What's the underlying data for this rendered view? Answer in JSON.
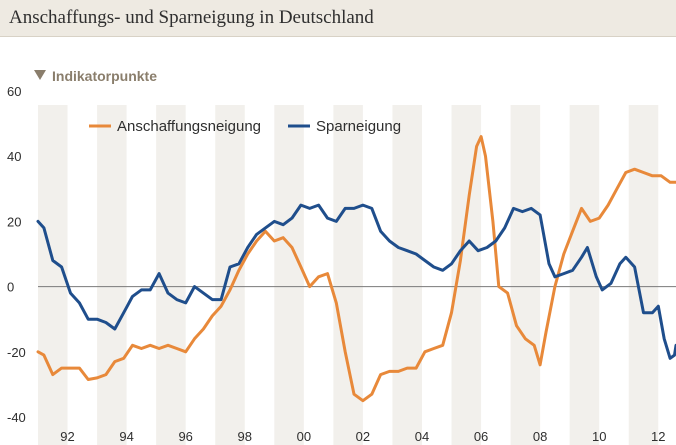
{
  "title": "Anschaffungs- und Sparneigung  in Deutschland",
  "chart_data": {
    "type": "line",
    "ylabel": "Indikatorpunkte",
    "ylim": [
      -40,
      60
    ],
    "xlim": [
      1991.0,
      2012.6
    ],
    "yticks": [
      "60",
      "40",
      "20",
      "0",
      "-20",
      "-40"
    ],
    "xticks": [
      "92",
      "94",
      "96",
      "98",
      "00",
      "02",
      "04",
      "06",
      "08",
      "10",
      "12"
    ],
    "grid": "alternating vertical bands",
    "legend_position": "top-left",
    "colors": {
      "Anschaffungsneigung": "#e8893a",
      "Sparneigung": "#1f4e8c"
    },
    "series": [
      {
        "name": "Anschaffungsneigung",
        "points": [
          [
            1991.0,
            -20
          ],
          [
            1991.2,
            -21
          ],
          [
            1991.5,
            -27
          ],
          [
            1991.8,
            -25
          ],
          [
            1992.1,
            -25
          ],
          [
            1992.4,
            -25
          ],
          [
            1992.7,
            -28.5
          ],
          [
            1993.0,
            -28
          ],
          [
            1993.3,
            -27
          ],
          [
            1993.6,
            -23
          ],
          [
            1993.9,
            -22
          ],
          [
            1994.2,
            -18
          ],
          [
            1994.5,
            -19
          ],
          [
            1994.8,
            -18
          ],
          [
            1995.1,
            -19
          ],
          [
            1995.4,
            -18
          ],
          [
            1995.7,
            -19
          ],
          [
            1996.0,
            -20
          ],
          [
            1996.3,
            -16
          ],
          [
            1996.6,
            -13
          ],
          [
            1996.9,
            -9
          ],
          [
            1997.2,
            -6
          ],
          [
            1997.5,
            -1
          ],
          [
            1997.8,
            5
          ],
          [
            1998.1,
            10
          ],
          [
            1998.4,
            14
          ],
          [
            1998.7,
            17
          ],
          [
            1999.0,
            14
          ],
          [
            1999.3,
            15
          ],
          [
            1999.6,
            12
          ],
          [
            1999.9,
            6
          ],
          [
            2000.2,
            0
          ],
          [
            2000.5,
            3
          ],
          [
            2000.8,
            4
          ],
          [
            2001.1,
            -5
          ],
          [
            2001.4,
            -20
          ],
          [
            2001.7,
            -33
          ],
          [
            2002.0,
            -35
          ],
          [
            2002.3,
            -33
          ],
          [
            2002.6,
            -27
          ],
          [
            2002.9,
            -26
          ],
          [
            2003.2,
            -26
          ],
          [
            2003.5,
            -25
          ],
          [
            2003.8,
            -25
          ],
          [
            2004.1,
            -20
          ],
          [
            2004.4,
            -19
          ],
          [
            2004.7,
            -18
          ],
          [
            2005.0,
            -8
          ],
          [
            2005.3,
            8
          ],
          [
            2005.6,
            28
          ],
          [
            2005.85,
            43
          ],
          [
            2006.0,
            46
          ],
          [
            2006.15,
            40
          ],
          [
            2006.4,
            20
          ],
          [
            2006.6,
            0
          ],
          [
            2006.9,
            -2
          ],
          [
            2007.2,
            -12
          ],
          [
            2007.5,
            -16
          ],
          [
            2007.8,
            -18
          ],
          [
            2008.0,
            -24
          ],
          [
            2008.2,
            -14
          ],
          [
            2008.5,
            0
          ],
          [
            2008.8,
            10
          ],
          [
            2009.1,
            17
          ],
          [
            2009.4,
            24
          ],
          [
            2009.7,
            20
          ],
          [
            2010.0,
            21
          ],
          [
            2010.3,
            25
          ],
          [
            2010.6,
            30
          ],
          [
            2010.9,
            35
          ],
          [
            2011.2,
            36
          ],
          [
            2011.5,
            35
          ],
          [
            2011.8,
            34
          ],
          [
            2012.1,
            34
          ],
          [
            2012.4,
            32
          ],
          [
            2012.6,
            32
          ]
        ]
      },
      {
        "name": "Sparneigung",
        "points": [
          [
            1991.0,
            20
          ],
          [
            1991.2,
            18
          ],
          [
            1991.5,
            8
          ],
          [
            1991.8,
            6
          ],
          [
            1992.1,
            -2
          ],
          [
            1992.4,
            -5
          ],
          [
            1992.7,
            -10
          ],
          [
            1993.0,
            -10
          ],
          [
            1993.3,
            -11
          ],
          [
            1993.6,
            -13
          ],
          [
            1993.9,
            -8
          ],
          [
            1994.2,
            -3
          ],
          [
            1994.5,
            -1
          ],
          [
            1994.8,
            -1
          ],
          [
            1995.1,
            4
          ],
          [
            1995.4,
            -2
          ],
          [
            1995.7,
            -4
          ],
          [
            1996.0,
            -5
          ],
          [
            1996.3,
            0
          ],
          [
            1996.6,
            -2
          ],
          [
            1996.9,
            -4
          ],
          [
            1997.2,
            -4
          ],
          [
            1997.5,
            6
          ],
          [
            1997.8,
            7
          ],
          [
            1998.1,
            12
          ],
          [
            1998.4,
            16
          ],
          [
            1998.7,
            18
          ],
          [
            1999.0,
            20
          ],
          [
            1999.3,
            19
          ],
          [
            1999.6,
            21
          ],
          [
            1999.9,
            25
          ],
          [
            2000.2,
            24
          ],
          [
            2000.5,
            25
          ],
          [
            2000.8,
            21
          ],
          [
            2001.1,
            20
          ],
          [
            2001.4,
            24
          ],
          [
            2001.7,
            24
          ],
          [
            2002.0,
            25
          ],
          [
            2002.3,
            24
          ],
          [
            2002.6,
            17
          ],
          [
            2002.9,
            14
          ],
          [
            2003.2,
            12
          ],
          [
            2003.5,
            11
          ],
          [
            2003.8,
            10
          ],
          [
            2004.1,
            8
          ],
          [
            2004.4,
            6
          ],
          [
            2004.7,
            5
          ],
          [
            2005.0,
            7
          ],
          [
            2005.3,
            11
          ],
          [
            2005.6,
            14
          ],
          [
            2005.9,
            11
          ],
          [
            2006.2,
            12
          ],
          [
            2006.5,
            14
          ],
          [
            2006.8,
            18
          ],
          [
            2007.1,
            24
          ],
          [
            2007.4,
            23
          ],
          [
            2007.7,
            24
          ],
          [
            2008.0,
            22
          ],
          [
            2008.3,
            7
          ],
          [
            2008.5,
            3
          ],
          [
            2008.8,
            4
          ],
          [
            2009.1,
            5
          ],
          [
            2009.4,
            9
          ],
          [
            2009.6,
            12
          ],
          [
            2009.9,
            3
          ],
          [
            2010.1,
            -1
          ],
          [
            2010.4,
            1
          ],
          [
            2010.7,
            7
          ],
          [
            2010.9,
            9
          ],
          [
            2011.2,
            6
          ],
          [
            2011.5,
            -8
          ],
          [
            2011.8,
            -8
          ],
          [
            2012.0,
            -6
          ],
          [
            2012.2,
            -16
          ],
          [
            2012.4,
            -22
          ],
          [
            2012.55,
            -21
          ],
          [
            2012.6,
            -18
          ]
        ]
      }
    ]
  }
}
